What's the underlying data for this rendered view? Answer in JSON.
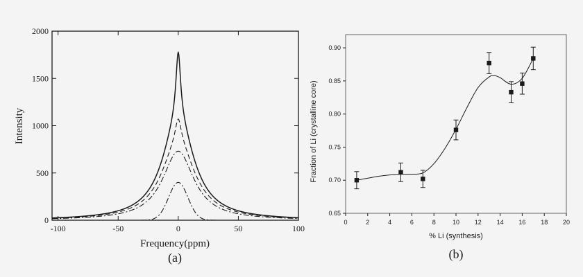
{
  "colors": {
    "background": "#f4f4f4",
    "ink": "#1a1a1a"
  },
  "chart_data": [
    {
      "panel_label": "(a)",
      "type": "line",
      "xlabel": "Frequency(ppm)",
      "ylabel": "Intensity",
      "xlim": [
        -105,
        100
      ],
      "ylim": [
        0,
        2000
      ],
      "xticks": [
        -100,
        -50,
        0,
        50,
        100
      ],
      "yticks": [
        0,
        500,
        1000,
        1500,
        2000
      ],
      "grid": false,
      "series": [
        {
          "style": "solid",
          "shape": "lorentzian-sum",
          "components": [
            {
              "center": 0,
              "amplitude": 1060,
              "hwhm": 16
            },
            {
              "center": 0,
              "amplitude": 715,
              "hwhm": 2.4
            }
          ]
        },
        {
          "style": "dashed",
          "shape": "lorentzian-sum",
          "components": [
            {
              "center": 0,
              "amplitude": 820,
              "hwhm": 17
            },
            {
              "center": 0,
              "amplitude": 250,
              "hwhm": 3
            }
          ]
        },
        {
          "style": "dash-dot",
          "shape": "lorentzian",
          "center": 0,
          "amplitude": 730,
          "hwhm": 16
        },
        {
          "style": "dash-dot",
          "shape": "gaussian",
          "center": 0,
          "amplitude": 400,
          "sigma": 8
        }
      ]
    },
    {
      "panel_label": "(b)",
      "type": "scatter",
      "xlabel": "% Li (synthesis)",
      "ylabel": "Fraction of  Li (crystalline core)",
      "xlim": [
        0,
        20
      ],
      "ylim": [
        0.65,
        0.92
      ],
      "xticks": [
        0,
        2,
        4,
        6,
        8,
        10,
        12,
        14,
        16,
        18,
        20
      ],
      "yticks": [
        0.65,
        0.7,
        0.75,
        0.8,
        0.85,
        0.9
      ],
      "ytick_labels": [
        "0.65",
        "0.70",
        "0.75",
        "0.80",
        "0.85",
        "0.90"
      ],
      "grid": false,
      "points": [
        {
          "x": 1,
          "y": 0.7,
          "err": 0.013
        },
        {
          "x": 5,
          "y": 0.712,
          "err": 0.014
        },
        {
          "x": 7,
          "y": 0.702,
          "err": 0.013
        },
        {
          "x": 10,
          "y": 0.776,
          "err": 0.015
        },
        {
          "x": 13,
          "y": 0.877,
          "err": 0.016
        },
        {
          "x": 15,
          "y": 0.833,
          "err": 0.016
        },
        {
          "x": 16,
          "y": 0.846,
          "err": 0.016
        },
        {
          "x": 17,
          "y": 0.884,
          "err": 0.017
        }
      ],
      "fit_curve": [
        [
          1,
          0.7
        ],
        [
          2,
          0.703
        ],
        [
          3,
          0.706
        ],
        [
          4,
          0.708
        ],
        [
          5,
          0.709
        ],
        [
          6,
          0.709
        ],
        [
          7,
          0.711
        ],
        [
          8,
          0.725
        ],
        [
          9,
          0.748
        ],
        [
          10,
          0.777
        ],
        [
          11,
          0.81
        ],
        [
          12,
          0.84
        ],
        [
          13,
          0.856
        ],
        [
          13.5,
          0.858
        ],
        [
          14,
          0.855
        ],
        [
          15,
          0.845
        ],
        [
          16,
          0.854
        ],
        [
          17,
          0.884
        ]
      ]
    }
  ]
}
